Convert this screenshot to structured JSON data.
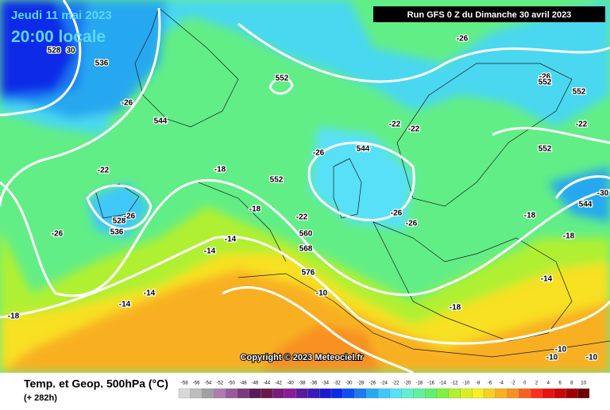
{
  "header": {
    "date": "Jeudi 11 mai 2023",
    "time": "20:00 locale",
    "run": "Run GFS 0 Z du Dimanche 30 avril 2023"
  },
  "copyright": "Copyright © 2023 Meteociel.fr",
  "footer": {
    "title": "Temp. et Geop. 500hPa (°C)",
    "lead": "(+ 282h)"
  },
  "legend": {
    "ticks": [
      -58,
      -56,
      -54,
      -52,
      -50,
      -48,
      -46,
      -44,
      -42,
      -40,
      -38,
      -36,
      -34,
      -32,
      -30,
      -28,
      -26,
      -24,
      -22,
      -20,
      -18,
      -16,
      -14,
      -12,
      -10,
      -8,
      -6,
      -4,
      -2,
      0,
      2,
      4,
      6,
      8,
      10
    ],
    "colors": [
      "#d8d8d8",
      "#bcbcbc",
      "#a0a0a0",
      "#b07ab0",
      "#9a5a9a",
      "#7a3a7a",
      "#5a1a5a",
      "#6a1a4a",
      "#7a1a7a",
      "#8a1a9a",
      "#5a1a9a",
      "#3a1aba",
      "#1a1ad0",
      "#0a2ae8",
      "#0a50f0",
      "#1a7af0",
      "#28a8f0",
      "#40c8f8",
      "#58e0f8",
      "#60f0d0",
      "#60f0a0",
      "#60f070",
      "#80f040",
      "#b0f030",
      "#d8f020",
      "#f8f020",
      "#f8d020",
      "#f8b020",
      "#f89020",
      "#f86020",
      "#f83020",
      "#e81010",
      "#c80808",
      "#a00000",
      "#700000"
    ]
  },
  "map_labels": [
    "528",
    "30",
    "536",
    "-26",
    "552",
    "-26",
    "544",
    "-22",
    "-18",
    "552",
    "-26",
    "544",
    "-22",
    "-22",
    "-26",
    "552",
    "552",
    "-22",
    "552",
    "-30",
    "544",
    "528",
    "-26",
    "536",
    "-26",
    "-18",
    "-22",
    "-26",
    "-26",
    "560",
    "568",
    "-18",
    "-18",
    "-14",
    "-14",
    "576",
    "-14",
    "-10",
    "-14",
    "-14",
    "-18",
    "-18",
    "-10",
    "-10",
    "-10"
  ]
}
